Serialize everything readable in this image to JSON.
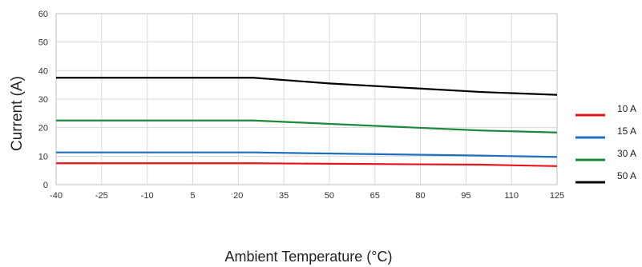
{
  "chart_data": {
    "type": "line",
    "title": "",
    "xlabel": "Ambient Temperature (°C)",
    "ylabel": "Current (A)",
    "xlim": [
      -40,
      125
    ],
    "ylim": [
      0,
      60
    ],
    "xticks": [
      "-40",
      "-25",
      "-10",
      "5",
      "20",
      "35",
      "50",
      "65",
      "80",
      "95",
      "110",
      "125"
    ],
    "yticks": [
      "0",
      "10",
      "20",
      "30",
      "40",
      "50",
      "60"
    ],
    "grid": true,
    "legend_position": "right",
    "series": [
      {
        "name": "10 A",
        "color": "#e8141c",
        "x": [
          -40,
          25,
          100,
          125
        ],
        "values": [
          7.5,
          7.5,
          7.0,
          6.5
        ]
      },
      {
        "name": "15 A",
        "color": "#1f6fbf",
        "x": [
          -40,
          25,
          100,
          125
        ],
        "values": [
          11.3,
          11.3,
          10.2,
          9.7
        ]
      },
      {
        "name": "30 A",
        "color": "#1a8a3a",
        "x": [
          -40,
          25,
          100,
          125
        ],
        "values": [
          22.5,
          22.5,
          19.0,
          18.3
        ]
      },
      {
        "name": "50 A",
        "color": "#000000",
        "x": [
          -40,
          25,
          50,
          100,
          125
        ],
        "values": [
          37.5,
          37.5,
          35.5,
          32.5,
          31.5
        ]
      }
    ]
  }
}
